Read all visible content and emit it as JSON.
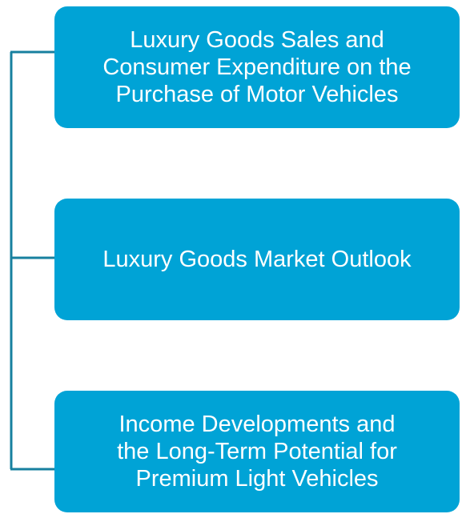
{
  "nodes": [
    {
      "label": [
        "Luxury Goods Sales and",
        "Consumer Expenditure on the",
        "Purchase of Motor Vehicles"
      ]
    },
    {
      "label": [
        "Luxury Goods Market Outlook"
      ]
    },
    {
      "label": [
        "Income Developments and",
        "the Long-Term Potential for",
        "Premium Light Vehicles"
      ]
    }
  ]
}
